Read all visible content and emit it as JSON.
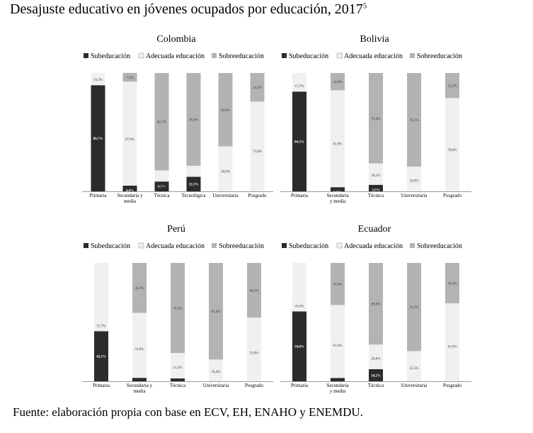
{
  "figure": {
    "title": "Desajuste educativo en jóvenes ocupados por educación, 2017",
    "title_sup": "5",
    "source": "Fuente: elaboración propia con base en ECV, EH, ENAHO y ENEMDU."
  },
  "colors": {
    "subeducacion": "#2b2b2b",
    "adecuada": "#f0f0f0",
    "sobreeducacion": "#b3b3b3"
  },
  "chart_data": [
    {
      "type": "bar",
      "stacked": "percent",
      "title": "Colombia",
      "legend": [
        "Subeducación",
        "Adecuada educación",
        "Sobreeducación"
      ],
      "legend_position": "top",
      "categories": [
        [
          "Primaria"
        ],
        [
          "Secundaria y",
          "media"
        ],
        [
          "Técnica"
        ],
        [
          "Tecnológica"
        ],
        [
          "Universitaria"
        ],
        [
          "Posgrado"
        ]
      ],
      "series": [
        {
          "name": "Subeducación",
          "values": [
            89.7,
            4.8,
            8.3,
            12.3,
            0,
            0
          ],
          "labels": [
            "89,7%",
            "4,8%",
            "8,3%",
            "12,3%",
            "",
            ""
          ]
        },
        {
          "name": "Adecuada educación",
          "values": [
            10.3,
            87.9,
            9.4,
            9.3,
            38.0,
            75.8
          ],
          "labels": [
            "10,3%",
            "87,9%",
            "9,4%",
            "9,3%",
            "38,0%",
            "75,8%"
          ]
        },
        {
          "name": "Sobreeducación",
          "values": [
            0,
            7.4,
            82.3,
            78.4,
            62.0,
            24.2
          ],
          "labels": [
            "",
            "7,4%",
            "82,3%",
            "78,4%",
            "62,0%",
            "24,2%"
          ]
        }
      ],
      "ylim": [
        0,
        100
      ]
    },
    {
      "type": "bar",
      "stacked": "percent",
      "title": "Bolivia",
      "legend": [
        "Subeducación",
        "Adecuada educación",
        "Sobreeducación"
      ],
      "legend_position": "top",
      "categories": [
        [
          "Primaria"
        ],
        [
          "Secundaria",
          "y media"
        ],
        [
          "Técnica"
        ],
        [
          "Universitaria"
        ],
        [
          "Posgrado"
        ]
      ],
      "series": [
        {
          "name": "Subeducación",
          "values": [
            84.3,
            3.5,
            5.5,
            0,
            0
          ],
          "labels": [
            "84,3%",
            "3,5%",
            "5,5%",
            "",
            ""
          ]
        },
        {
          "name": "Adecuada educación",
          "values": [
            15.7,
            81.9,
            18.1,
            20.9,
            78.8
          ],
          "labels": [
            "15,7%",
            "81,9%",
            "18,1%",
            "20,9%",
            "78,8%"
          ]
        },
        {
          "name": "Sobreeducación",
          "values": [
            0,
            14.6,
            76.4,
            79.1,
            21.2
          ],
          "labels": [
            "",
            "14,6%",
            "76,4%",
            "79,1%",
            "21,2%"
          ]
        }
      ],
      "ylim": [
        0,
        100
      ]
    },
    {
      "type": "bar",
      "stacked": "percent",
      "title": "Perú",
      "legend": [
        "Subeducación",
        "Adecuada educación",
        "Sobreeducación"
      ],
      "legend_position": "top",
      "categories": [
        [
          "Primaria"
        ],
        [
          "Secundaria y",
          "media"
        ],
        [
          "Técnica"
        ],
        [
          "Universitaria"
        ],
        [
          "Posgrado"
        ]
      ],
      "series": [
        {
          "name": "Subeducación",
          "values": [
            42.3,
            2.9,
            2.4,
            0,
            0
          ],
          "labels": [
            "42,3%",
            "2,9%",
            "2,4%",
            "",
            ""
          ]
        },
        {
          "name": "Adecuada educación",
          "values": [
            57.7,
            54.9,
            21.5,
            18.4,
            53.8
          ],
          "labels": [
            "57,7%",
            "54,9%",
            "21,5%",
            "18,4%",
            "53,8%"
          ]
        },
        {
          "name": "Sobreeducación",
          "values": [
            0,
            42.2,
            76.1,
            81.6,
            46.2
          ],
          "labels": [
            "",
            "42,2%",
            "76,1%",
            "81,6%",
            "46,2%"
          ]
        }
      ],
      "ylim": [
        0,
        100
      ]
    },
    {
      "type": "bar",
      "stacked": "percent",
      "title": "Ecuador",
      "legend": [
        "Subeducación",
        "Adecuada educación",
        "Sobreeducación"
      ],
      "legend_position": "top",
      "categories": [
        [
          "Primaria"
        ],
        [
          "Secundaria",
          "y media"
        ],
        [
          "Técnica"
        ],
        [
          "Universitaria"
        ],
        [
          "Posgrado"
        ]
      ],
      "series": [
        {
          "name": "Subeducación",
          "values": [
            59.0,
            2.8,
            10.2,
            0,
            0
          ],
          "labels": [
            "59,0%",
            "2,8%",
            "10,2%",
            "",
            ""
          ]
        },
        {
          "name": "Adecuada educación",
          "values": [
            41.0,
            61.6,
            20.8,
            25.5,
            65.9
          ],
          "labels": [
            "41,0%",
            "61,6%",
            "20,8%",
            "25,5%",
            "65,9%"
          ]
        },
        {
          "name": "Sobreeducación",
          "values": [
            0,
            35.6,
            69.0,
            74.5,
            34.1
          ],
          "labels": [
            "",
            "35,6%",
            "69,0%",
            "74,5%",
            "34,1%"
          ]
        }
      ],
      "ylim": [
        0,
        100
      ]
    }
  ]
}
